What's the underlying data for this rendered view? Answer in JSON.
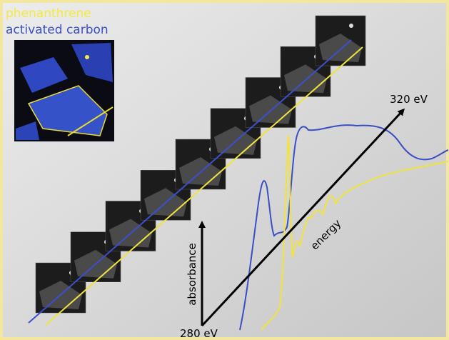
{
  "legend": [
    "phenanthrene",
    "activated carbon"
  ],
  "axes": {
    "energy": "energy",
    "absorbance": "absorbance",
    "start": "280 eV",
    "end": "320 eV"
  }
}
